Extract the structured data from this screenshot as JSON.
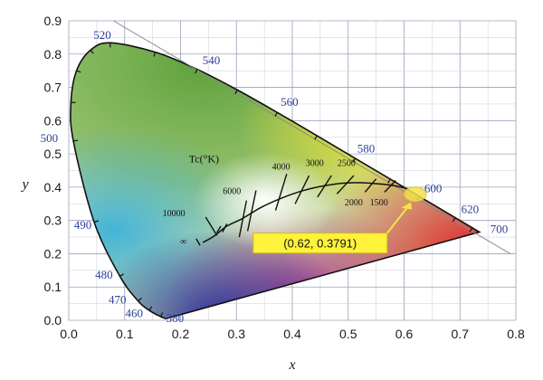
{
  "chart_data": {
    "type": "scatter",
    "title": "",
    "xlabel": "x",
    "ylabel": "y",
    "xlim": [
      0.0,
      0.8
    ],
    "ylim": [
      0.0,
      0.9
    ],
    "x_ticks": [
      "0.0",
      "0.1",
      "0.2",
      "0.3",
      "0.4",
      "0.5",
      "0.6",
      "0.7",
      "0.8"
    ],
    "y_ticks": [
      "0.0",
      "0.1",
      "0.2",
      "0.3",
      "0.4",
      "0.5",
      "0.6",
      "0.7",
      "0.8",
      "0.9"
    ],
    "grid": true,
    "colors": {
      "grid": "#9aa0b8",
      "locus": "#111111",
      "wavelength_label": "#2d3f9a",
      "callout_bg": "#fff23a",
      "marker": "#f1e24a"
    },
    "spectral_locus": {
      "points": [
        {
          "wl": "380",
          "x": 0.1741,
          "y": 0.005
        },
        {
          "wl": "440",
          "x": 0.1644,
          "y": 0.0109
        },
        {
          "wl": "460",
          "x": 0.144,
          "y": 0.0297
        },
        {
          "wl": "470",
          "x": 0.1241,
          "y": 0.0578
        },
        {
          "wl": "480",
          "x": 0.0913,
          "y": 0.1327
        },
        {
          "wl": "490",
          "x": 0.0454,
          "y": 0.295
        },
        {
          "wl": "500",
          "x": 0.0082,
          "y": 0.5384
        },
        {
          "wl": "505",
          "x": 0.0039,
          "y": 0.6548
        },
        {
          "wl": "510",
          "x": 0.0139,
          "y": 0.7502
        },
        {
          "wl": "515",
          "x": 0.0389,
          "y": 0.812
        },
        {
          "wl": "520",
          "x": 0.0743,
          "y": 0.8338
        },
        {
          "wl": "530",
          "x": 0.1547,
          "y": 0.8059
        },
        {
          "wl": "540",
          "x": 0.2296,
          "y": 0.7543
        },
        {
          "wl": "550",
          "x": 0.3016,
          "y": 0.6923
        },
        {
          "wl": "560",
          "x": 0.3731,
          "y": 0.6245
        },
        {
          "wl": "570",
          "x": 0.4441,
          "y": 0.5547
        },
        {
          "wl": "580",
          "x": 0.5125,
          "y": 0.4866
        },
        {
          "wl": "590",
          "x": 0.5752,
          "y": 0.4242
        },
        {
          "wl": "600",
          "x": 0.627,
          "y": 0.3725
        },
        {
          "wl": "620",
          "x": 0.6915,
          "y": 0.3083
        },
        {
          "wl": "640",
          "x": 0.7219,
          "y": 0.2781
        },
        {
          "wl": "700",
          "x": 0.7347,
          "y": 0.2653
        }
      ],
      "labels": [
        {
          "text": "520",
          "x": 0.06,
          "y": 0.845
        },
        {
          "text": "540",
          "x": 0.255,
          "y": 0.77
        },
        {
          "text": "560",
          "x": 0.395,
          "y": 0.645
        },
        {
          "text": "580",
          "x": 0.532,
          "y": 0.505
        },
        {
          "text": "600",
          "x": 0.652,
          "y": 0.385
        },
        {
          "text": "620",
          "x": 0.718,
          "y": 0.322
        },
        {
          "text": "700",
          "x": 0.77,
          "y": 0.263
        },
        {
          "text": "500",
          "x": -0.035,
          "y": 0.535
        },
        {
          "text": "490",
          "x": 0.025,
          "y": 0.275
        },
        {
          "text": "480",
          "x": 0.063,
          "y": 0.125
        },
        {
          "text": "470",
          "x": 0.087,
          "y": 0.05
        },
        {
          "text": "460",
          "x": 0.117,
          "y": 0.01
        },
        {
          "text": "380",
          "x": 0.19,
          "y": -0.005
        }
      ]
    },
    "planckian_locus": {
      "label": "Tc(°K)",
      "points": [
        {
          "x": 0.24,
          "y": 0.234
        },
        {
          "x": 0.26,
          "y": 0.253
        },
        {
          "x": 0.283,
          "y": 0.283
        },
        {
          "x": 0.31,
          "y": 0.305
        },
        {
          "x": 0.345,
          "y": 0.34
        },
        {
          "x": 0.382,
          "y": 0.368
        },
        {
          "x": 0.42,
          "y": 0.39
        },
        {
          "x": 0.46,
          "y": 0.405
        },
        {
          "x": 0.5,
          "y": 0.413
        },
        {
          "x": 0.54,
          "y": 0.412
        },
        {
          "x": 0.58,
          "y": 0.405
        },
        {
          "x": 0.607,
          "y": 0.395
        }
      ],
      "temperature_labels": [
        {
          "text": "10000",
          "x": 0.188,
          "y": 0.313
        },
        {
          "text": "6000",
          "x": 0.292,
          "y": 0.379
        },
        {
          "text": "4000",
          "x": 0.38,
          "y": 0.453
        },
        {
          "text": "3000",
          "x": 0.44,
          "y": 0.463
        },
        {
          "text": "2500",
          "x": 0.497,
          "y": 0.463
        },
        {
          "text": "2000",
          "x": 0.51,
          "y": 0.345
        },
        {
          "text": "1500",
          "x": 0.555,
          "y": 0.345
        },
        {
          "text": "∞",
          "x": 0.205,
          "y": 0.228
        }
      ]
    },
    "annotation": {
      "point": {
        "x": 0.62,
        "y": 0.3791
      },
      "text": "(0.62, 0.3791)"
    }
  }
}
